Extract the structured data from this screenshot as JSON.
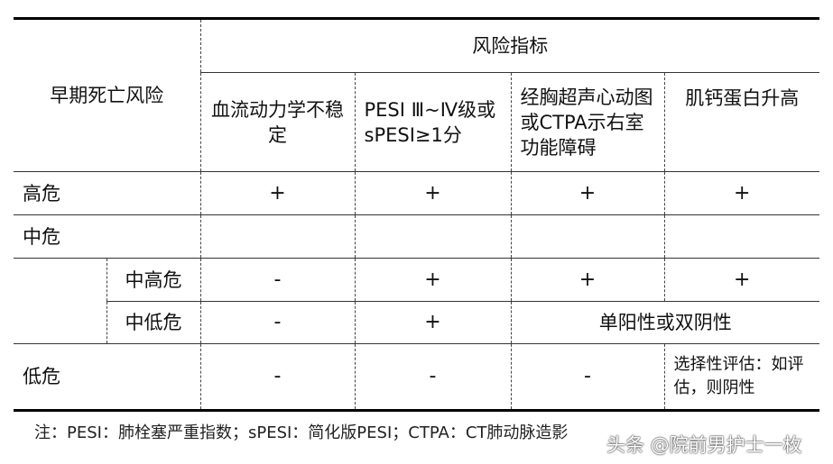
{
  "header": {
    "row_label": "早期死亡风险",
    "group_title": "风险指标",
    "indicators": [
      "血流动力学不稳定",
      "PESI Ⅲ~Ⅳ级或sPESI≥1分",
      "经胸超声心动图或CTPA示右室功能障碍",
      "肌钙蛋白升高"
    ]
  },
  "rows": [
    {
      "label": "高危",
      "values": [
        "+",
        "+",
        "+",
        "+"
      ]
    },
    {
      "label": "中危",
      "values": [
        "",
        "",
        "",
        ""
      ]
    },
    {
      "sublabel": "中高危",
      "values": [
        "-",
        "+",
        "+",
        "+"
      ]
    },
    {
      "sublabel": "中低危",
      "values": [
        "-",
        "+"
      ],
      "merged": "单阳性或双阴性"
    },
    {
      "label": "低危",
      "values": [
        "-",
        "-",
        "-",
        "选择性评估：如评估，则阴性"
      ]
    }
  ],
  "footnote": "注：PESI：肺栓塞严重指数；sPESI：简化版PESI；CTPA：CT肺动脉造影",
  "watermark": "头条 @院前男护士一枚"
}
